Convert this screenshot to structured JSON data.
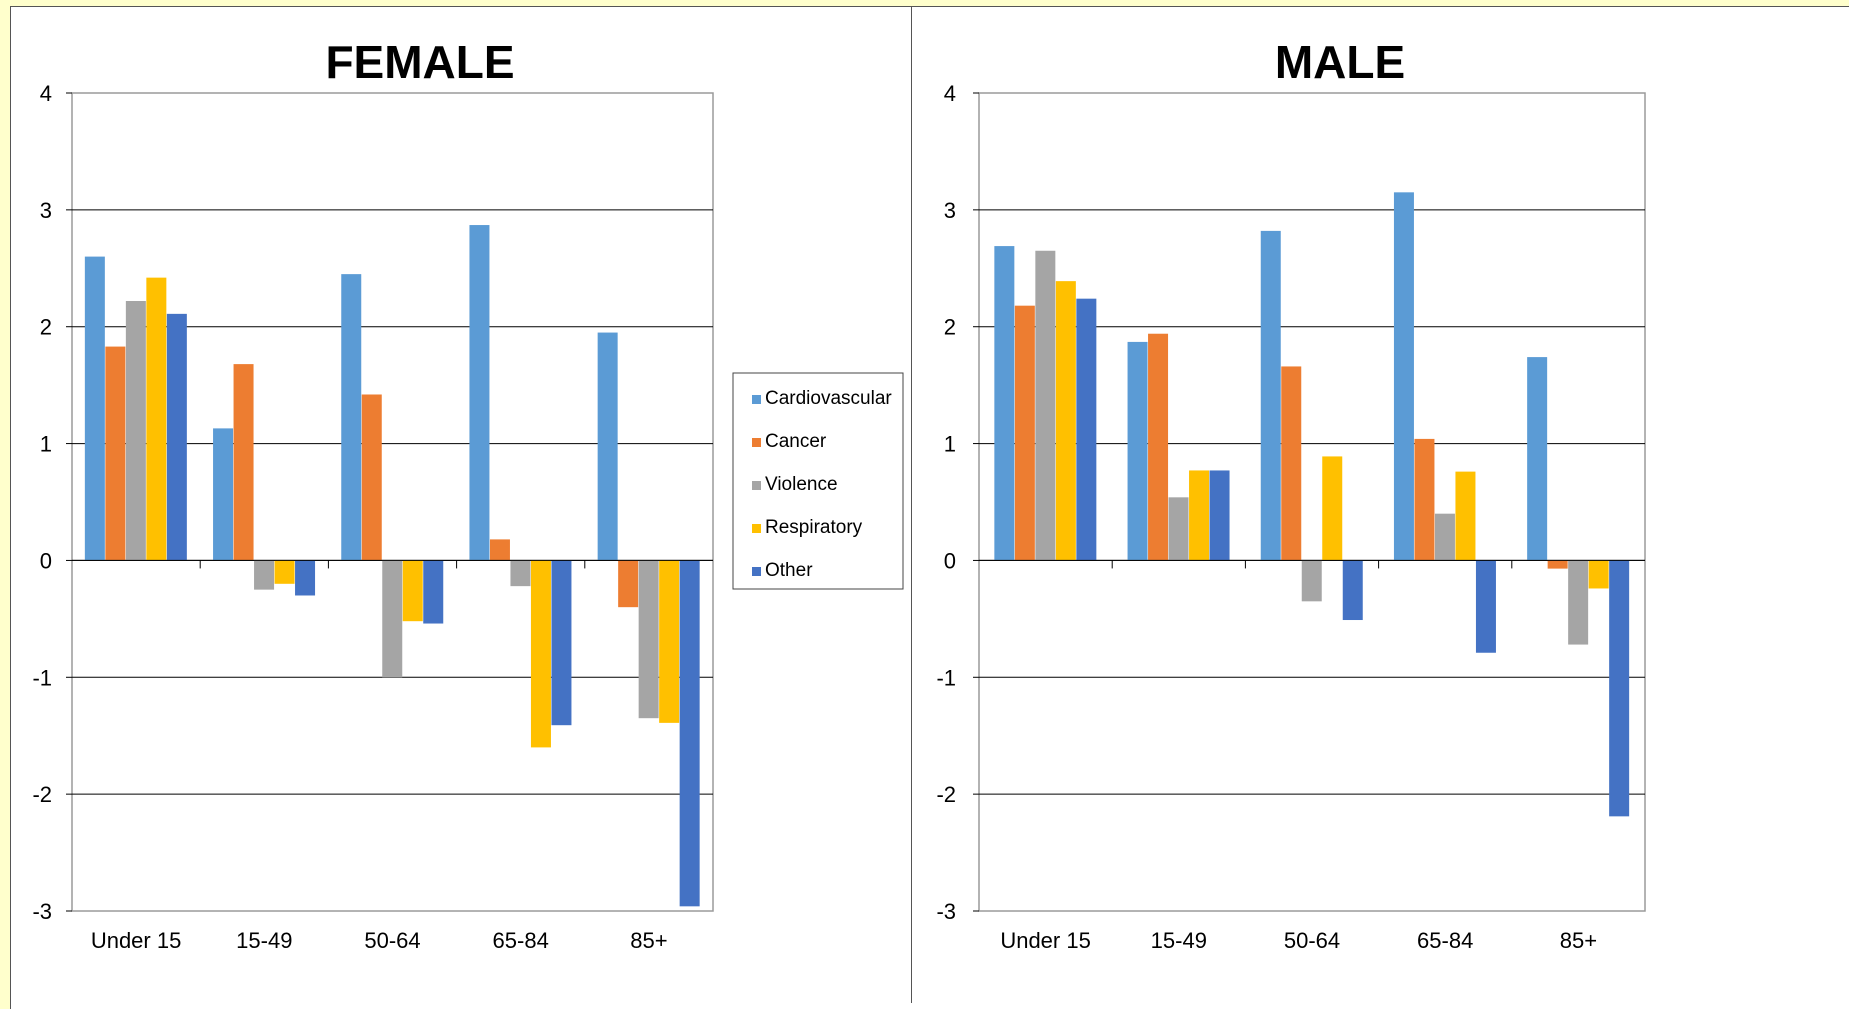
{
  "chart_data": [
    {
      "type": "bar",
      "title": "FEMALE",
      "categories": [
        "Under 15",
        "15-49",
        "50-64",
        "65-84",
        "85+"
      ],
      "series": [
        {
          "name": "Cardiovascular",
          "values": [
            2.6,
            1.13,
            2.45,
            2.87,
            1.95
          ]
        },
        {
          "name": "Cancer",
          "values": [
            1.83,
            1.68,
            1.42,
            0.18,
            -0.4
          ]
        },
        {
          "name": "Violence",
          "values": [
            2.22,
            -0.25,
            -1.0,
            -0.22,
            -1.35
          ]
        },
        {
          "name": "Respiratory",
          "values": [
            2.42,
            -0.2,
            -0.52,
            -1.6,
            -1.39
          ]
        },
        {
          "name": "Other",
          "values": [
            2.11,
            -0.3,
            -0.54,
            -1.41,
            -2.96
          ]
        }
      ],
      "ylim": [
        -3,
        4
      ],
      "yticks": [
        "-3",
        "-2",
        "-1",
        "0",
        "1",
        "2",
        "3",
        "4"
      ],
      "grid": true
    },
    {
      "type": "bar",
      "title": "MALE",
      "categories": [
        "Under 15",
        "15-49",
        "50-64",
        "65-84",
        "85+"
      ],
      "series": [
        {
          "name": "Cardiovascular",
          "values": [
            2.69,
            1.87,
            2.82,
            3.15,
            1.74
          ]
        },
        {
          "name": "Cancer",
          "values": [
            2.18,
            1.94,
            1.66,
            1.04,
            -0.07
          ]
        },
        {
          "name": "Violence",
          "values": [
            2.65,
            0.54,
            -0.35,
            0.4,
            -0.72
          ]
        },
        {
          "name": "Respiratory",
          "values": [
            2.39,
            0.77,
            0.89,
            0.76,
            -0.24
          ]
        },
        {
          "name": "Other",
          "values": [
            2.24,
            0.77,
            -0.51,
            -0.79,
            -2.19
          ]
        }
      ],
      "ylim": [
        -3,
        4
      ],
      "yticks": [
        "-3",
        "-2",
        "-1",
        "0",
        "1",
        "2",
        "3",
        "4"
      ],
      "grid": true
    }
  ],
  "legend": {
    "placement": "between-charts",
    "items": [
      "Cardiovascular",
      "Cancer",
      "Violence",
      "Respiratory",
      "Other"
    ]
  },
  "colors": {
    "Cardiovascular": "#5b9bd5",
    "Cancer": "#ed7d31",
    "Violence": "#a5a5a5",
    "Respiratory": "#ffc000",
    "Other": "#4472c4",
    "background": "#ffffcc"
  }
}
